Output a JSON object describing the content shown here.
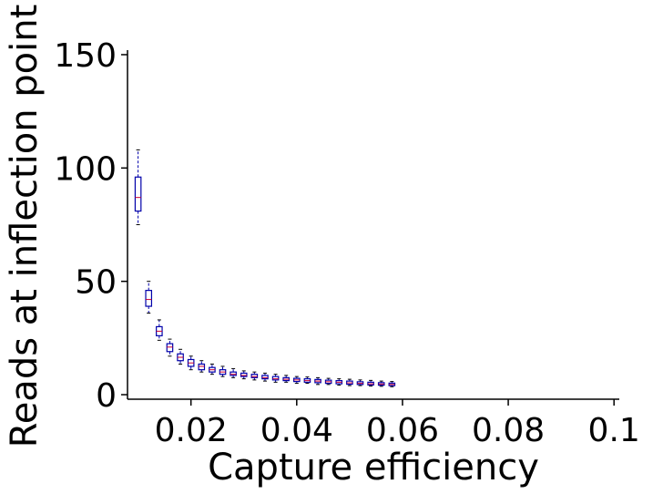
{
  "chart_data": {
    "type": "box",
    "title": "",
    "xlabel": "Capture efficiency",
    "ylabel": "Reads at inflection point",
    "xlim": [
      0.008,
      0.101
    ],
    "ylim": [
      -2,
      152
    ],
    "xticks": [
      0.02,
      0.04,
      0.06,
      0.08,
      0.1
    ],
    "xtick_labels": [
      "0.02",
      "0.04",
      "0.06",
      "0.08",
      "0.1"
    ],
    "yticks": [
      0,
      50,
      100,
      150
    ],
    "ytick_labels": [
      "0",
      "50",
      "100",
      "150"
    ],
    "grid": false,
    "legend": "none",
    "colors": {
      "box": "#0000aa",
      "median": "#cc0033",
      "axis": "#000000"
    },
    "boxes": [
      {
        "x": 0.01,
        "whislo": 75,
        "q1": 81,
        "med": 87,
        "q3": 96,
        "whishi": 108
      },
      {
        "x": 0.012,
        "whislo": 36,
        "q1": 39,
        "med": 42,
        "q3": 46,
        "whishi": 50
      },
      {
        "x": 0.014,
        "whislo": 24,
        "q1": 26,
        "med": 28,
        "q3": 30,
        "whishi": 33
      },
      {
        "x": 0.016,
        "whislo": 17,
        "q1": 19,
        "med": 21,
        "q3": 22.5,
        "whishi": 24.5
      },
      {
        "x": 0.018,
        "whislo": 13.5,
        "q1": 15,
        "med": 16.5,
        "q3": 18,
        "whishi": 20
      },
      {
        "x": 0.02,
        "whislo": 11,
        "q1": 12.5,
        "med": 14,
        "q3": 15.5,
        "whishi": 17
      },
      {
        "x": 0.022,
        "whislo": 10,
        "q1": 11,
        "med": 12.5,
        "q3": 13.5,
        "whishi": 15
      },
      {
        "x": 0.024,
        "whislo": 9,
        "q1": 10,
        "med": 11,
        "q3": 12,
        "whishi": 13.5
      },
      {
        "x": 0.026,
        "whislo": 8,
        "q1": 9,
        "med": 10,
        "q3": 11,
        "whishi": 12.5
      },
      {
        "x": 0.028,
        "whislo": 7.5,
        "q1": 8.5,
        "med": 9,
        "q3": 10,
        "whishi": 11.5
      },
      {
        "x": 0.03,
        "whislo": 7,
        "q1": 8,
        "med": 8.5,
        "q3": 9.5,
        "whishi": 10.5
      },
      {
        "x": 0.032,
        "whislo": 6.5,
        "q1": 7.5,
        "med": 8,
        "q3": 9,
        "whishi": 10
      },
      {
        "x": 0.034,
        "whislo": 6,
        "q1": 7,
        "med": 7.5,
        "q3": 8.5,
        "whishi": 9.5
      },
      {
        "x": 0.036,
        "whislo": 5.5,
        "q1": 6.5,
        "med": 7,
        "q3": 8,
        "whishi": 9
      },
      {
        "x": 0.038,
        "whislo": 5.5,
        "q1": 6.2,
        "med": 6.8,
        "q3": 7.5,
        "whishi": 8.5
      },
      {
        "x": 0.04,
        "whislo": 5,
        "q1": 5.8,
        "med": 6.5,
        "q3": 7.2,
        "whishi": 8
      },
      {
        "x": 0.042,
        "whislo": 5,
        "q1": 5.5,
        "med": 6.2,
        "q3": 7,
        "whishi": 7.8
      },
      {
        "x": 0.044,
        "whislo": 4.5,
        "q1": 5.3,
        "med": 6,
        "q3": 6.7,
        "whishi": 7.5
      },
      {
        "x": 0.046,
        "whislo": 4.5,
        "q1": 5,
        "med": 5.7,
        "q3": 6.4,
        "whishi": 7.2
      },
      {
        "x": 0.048,
        "whislo": 4.2,
        "q1": 4.8,
        "med": 5.5,
        "q3": 6.2,
        "whishi": 7
      },
      {
        "x": 0.05,
        "whislo": 4,
        "q1": 4.6,
        "med": 5.2,
        "q3": 6,
        "whishi": 6.8
      },
      {
        "x": 0.052,
        "whislo": 4,
        "q1": 4.5,
        "med": 5,
        "q3": 5.7,
        "whishi": 6.5
      },
      {
        "x": 0.054,
        "whislo": 3.8,
        "q1": 4.3,
        "med": 4.8,
        "q3": 5.5,
        "whishi": 6.3
      },
      {
        "x": 0.056,
        "whislo": 3.7,
        "q1": 4.2,
        "med": 4.7,
        "q3": 5.3,
        "whishi": 6
      },
      {
        "x": 0.058,
        "whislo": 3.5,
        "q1": 4,
        "med": 4.5,
        "q3": 5.1,
        "whishi": 5.8
      }
    ]
  }
}
